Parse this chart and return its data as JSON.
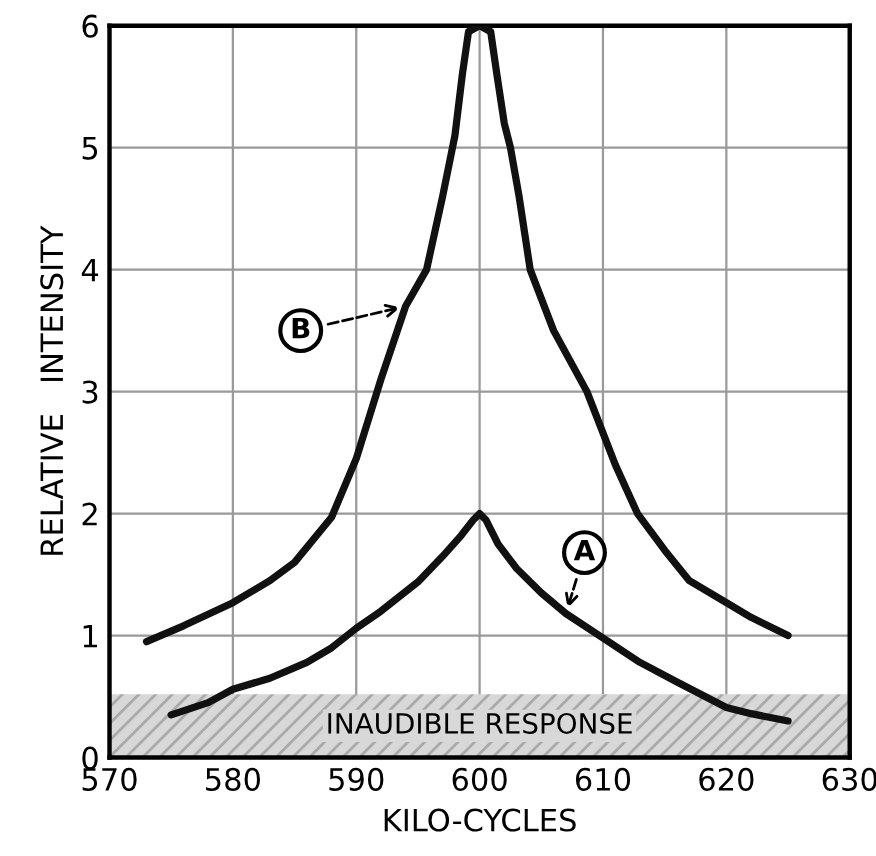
{
  "chart_data": {
    "type": "line",
    "xlabel": "KILO-CYCLES",
    "ylabel": "RELATIVE   INTENSITY",
    "series": [
      {
        "color": "#111111",
        "x": [
          573,
          576,
          580,
          583,
          585,
          588,
          590,
          592,
          594,
          595.7,
          597,
          598,
          598.6,
          599.1,
          600,
          600.9,
          601.4,
          602,
          602.5,
          603.2,
          604.1,
          606,
          608.7,
          611,
          612.8,
          615,
          617,
          620,
          622,
          625
        ],
        "values": [
          0.95,
          1.08,
          1.27,
          1.45,
          1.6,
          1.97,
          2.45,
          3.1,
          3.7,
          4.0,
          4.6,
          5.1,
          5.6,
          5.95,
          6.0,
          5.95,
          5.6,
          5.2,
          5.0,
          4.6,
          4.0,
          3.5,
          3.0,
          2.4,
          2.0,
          1.7,
          1.45,
          1.27,
          1.15,
          1.0
        ]
      },
      {
        "color": "#111111",
        "x": [
          575,
          578,
          580,
          583,
          586,
          588,
          590,
          592,
          594,
          595,
          597,
          598.5,
          599.5,
          600,
          600.5,
          601.5,
          603,
          605,
          607,
          610,
          613,
          616,
          620,
          622,
          625
        ],
        "values": [
          0.35,
          0.45,
          0.56,
          0.65,
          0.78,
          0.9,
          1.06,
          1.2,
          1.36,
          1.44,
          1.65,
          1.82,
          1.95,
          2.0,
          1.95,
          1.75,
          1.55,
          1.35,
          1.18,
          0.98,
          0.78,
          0.62,
          0.41,
          0.36,
          0.3
        ]
      }
    ],
    "xlim": [
      570,
      630
    ],
    "ylim": [
      0,
      6
    ],
    "xticks": [
      570,
      580,
      590,
      600,
      610,
      620,
      630
    ],
    "yticks": [
      0,
      1,
      2,
      3,
      4,
      5,
      6
    ],
    "grid": true,
    "line_style": "solid",
    "bands": [
      {
        "axis": "y",
        "from": 0,
        "to": 0.52,
        "label": "INAUDIBLE RESPONSE",
        "color": "#d8d8d8"
      }
    ],
    "annotations": [
      {
        "text": "B",
        "x": 594,
        "y": 3.7
      },
      {
        "text": "A",
        "x": 607,
        "y": 1.18
      }
    ]
  }
}
